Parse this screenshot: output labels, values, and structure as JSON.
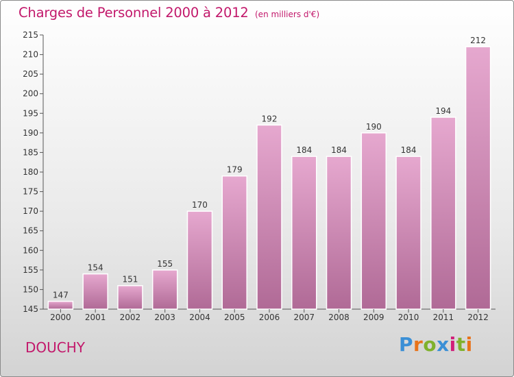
{
  "header": {
    "title": "Charges de Personnel 2000 à 2012",
    "unit": "(en milliers d'€)"
  },
  "footer": {
    "commune": "DOUCHY",
    "logo": "Proxiti",
    "logo_colors": [
      "#3a8fd6",
      "#e8731a",
      "#7fb12c",
      "#3a8fd6",
      "#d11f7a",
      "#7fb12c",
      "#e8731a"
    ]
  },
  "colors": {
    "title": "#c2186b",
    "bar_light": "#e6a8cf",
    "bar_dark": "#b06a96",
    "bar_edge": "#ffffff"
  },
  "chart_data": {
    "type": "bar",
    "categories": [
      "2000",
      "2001",
      "2002",
      "2003",
      "2004",
      "2005",
      "2006",
      "2007",
      "2008",
      "2009",
      "2010",
      "2011",
      "2012"
    ],
    "values": [
      147,
      154,
      151,
      155,
      170,
      179,
      192,
      184,
      184,
      190,
      184,
      194,
      212
    ],
    "ylim": [
      145,
      215
    ],
    "yticks": [
      145,
      150,
      155,
      160,
      165,
      170,
      175,
      180,
      185,
      190,
      195,
      200,
      205,
      210,
      215
    ],
    "grid": false,
    "legend": "none"
  }
}
